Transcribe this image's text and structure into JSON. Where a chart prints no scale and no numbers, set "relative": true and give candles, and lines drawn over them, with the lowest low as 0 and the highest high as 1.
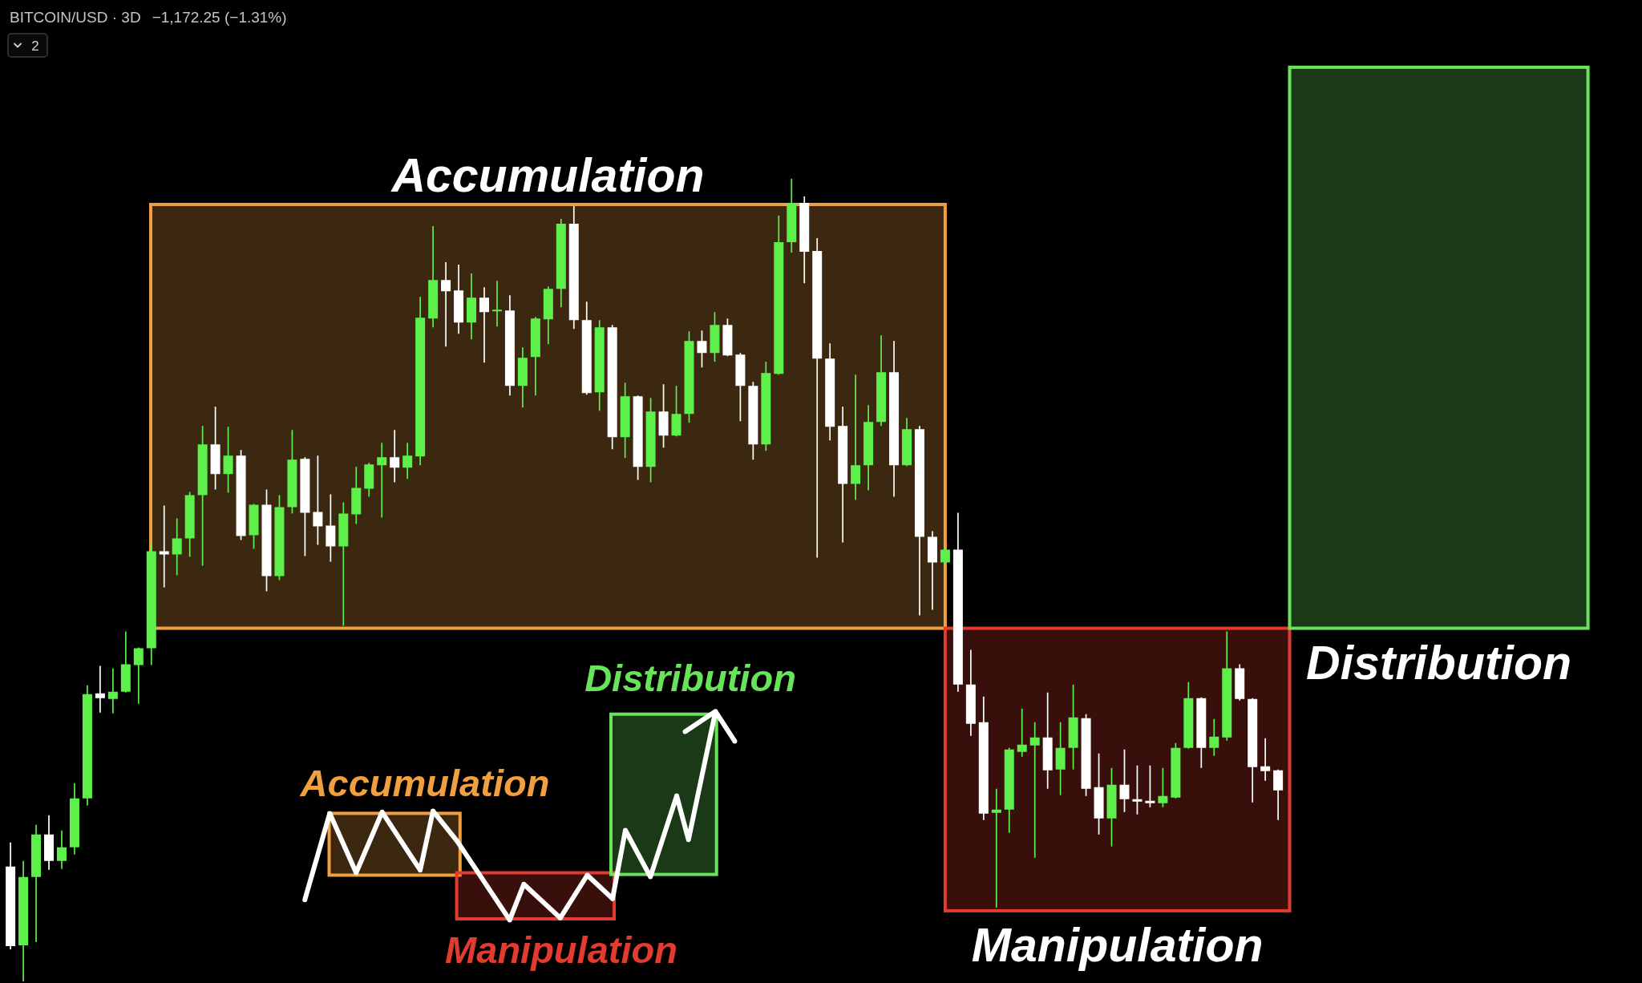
{
  "chart_data": {
    "type": "candlestick",
    "title": "BITCOIN/USD · 3D",
    "subtitle": "−1,172.25 (−1.31%)",
    "relative": true,
    "categories": [
      null,
      null,
      null,
      null,
      null,
      null,
      null,
      null,
      null,
      null,
      null,
      null,
      null,
      null,
      null,
      null,
      null,
      null,
      null,
      null,
      null,
      null,
      null,
      null,
      null,
      null,
      null,
      null,
      null,
      null,
      null,
      null,
      null,
      null,
      null,
      null,
      null,
      null,
      null,
      null,
      null,
      null,
      null,
      null,
      null,
      null,
      null,
      null,
      null,
      null,
      null,
      null,
      null,
      null,
      null,
      null,
      null,
      null,
      null,
      null,
      null,
      null,
      null,
      null,
      null,
      null,
      null,
      null,
      null,
      null,
      null,
      null,
      null,
      null,
      null,
      null,
      null,
      null,
      null,
      null,
      null,
      null,
      null,
      null,
      null,
      null,
      null,
      null,
      null,
      null,
      null,
      null,
      null,
      null,
      null,
      null,
      null,
      null,
      null,
      null,
      null,
      null,
      null,
      null,
      null,
      null,
      null,
      null,
      null,
      null,
      null,
      null,
      null,
      null,
      null,
      null,
      null,
      null,
      null,
      null,
      null,
      null,
      null,
      null
    ],
    "ohlc": [
      [
        0.143,
        0.173,
        0.04,
        0.044
      ],
      [
        0.045,
        0.15,
        0,
        0.13
      ],
      [
        0.13,
        0.195,
        0.049,
        0.183
      ],
      [
        0.183,
        0.207,
        0.139,
        0.15
      ],
      [
        0.15,
        0.188,
        0.14,
        0.167
      ],
      [
        0.167,
        0.247,
        0.158,
        0.228
      ],
      [
        0.228,
        0.369,
        0.219,
        0.358
      ],
      [
        0.359,
        0.393,
        0.335,
        0.353
      ],
      [
        0.352,
        0.39,
        0.334,
        0.361
      ],
      [
        0.361,
        0.436,
        0.36,
        0.395
      ],
      [
        0.394,
        0.416,
        0.346,
        0.415
      ],
      [
        0.415,
        0.545,
        0.394,
        0.536
      ],
      [
        0.536,
        0.593,
        0.491,
        0.532
      ],
      [
        0.532,
        0.577,
        0.506,
        0.552
      ],
      [
        0.552,
        0.61,
        0.529,
        0.606
      ],
      [
        0.606,
        0.692,
        0.518,
        0.669
      ],
      [
        0.669,
        0.716,
        0.613,
        0.632
      ],
      [
        0.632,
        0.691,
        0.609,
        0.655
      ],
      [
        0.655,
        0.662,
        0.55,
        0.555
      ],
      [
        0.556,
        0.595,
        0.539,
        0.594
      ],
      [
        0.594,
        0.613,
        0.486,
        0.505
      ],
      [
        0.505,
        0.606,
        0.5,
        0.591
      ],
      [
        0.591,
        0.687,
        0.583,
        0.65
      ],
      [
        0.651,
        0.653,
        0.53,
        0.584
      ],
      [
        0.585,
        0.655,
        0.544,
        0.567
      ],
      [
        0.568,
        0.607,
        0.523,
        0.542
      ],
      [
        0.542,
        0.597,
        0.443,
        0.583
      ],
      [
        0.582,
        0.641,
        0.57,
        0.615
      ],
      [
        0.614,
        0.646,
        0.604,
        0.644
      ],
      [
        0.643,
        0.671,
        0.578,
        0.653
      ],
      [
        0.653,
        0.687,
        0.622,
        0.64
      ],
      [
        0.64,
        0.671,
        0.626,
        0.655
      ],
      [
        0.654,
        0.853,
        0.643,
        0.827
      ],
      [
        0.826,
        0.941,
        0.815,
        0.874
      ],
      [
        0.874,
        0.896,
        0.791,
        0.86
      ],
      [
        0.861,
        0.893,
        0.807,
        0.821
      ],
      [
        0.821,
        0.882,
        0.8,
        0.852
      ],
      [
        0.852,
        0.865,
        0.771,
        0.834
      ],
      [
        0.835,
        0.873,
        0.816,
        0.837
      ],
      [
        0.836,
        0.855,
        0.73,
        0.742
      ],
      [
        0.742,
        0.79,
        0.715,
        0.777
      ],
      [
        0.778,
        0.828,
        0.73,
        0.826
      ],
      [
        0.825,
        0.866,
        0.794,
        0.863
      ],
      [
        0.863,
        0.95,
        0.84,
        0.944
      ],
      [
        0.944,
        0.966,
        0.813,
        0.824
      ],
      [
        0.824,
        0.847,
        0.731,
        0.733
      ],
      [
        0.734,
        0.824,
        0.711,
        0.815
      ],
      [
        0.815,
        0.818,
        0.663,
        0.678
      ],
      [
        0.678,
        0.746,
        0.652,
        0.729
      ],
      [
        0.729,
        0.73,
        0.625,
        0.641
      ],
      [
        0.641,
        0.727,
        0.622,
        0.71
      ],
      [
        0.71,
        0.744,
        0.665,
        0.68
      ],
      [
        0.68,
        0.742,
        0.679,
        0.707
      ],
      [
        0.707,
        0.81,
        0.696,
        0.798
      ],
      [
        0.798,
        0.811,
        0.765,
        0.783
      ],
      [
        0.783,
        0.834,
        0.772,
        0.818
      ],
      [
        0.818,
        0.826,
        0.779,
        0.78
      ],
      [
        0.781,
        0.783,
        0.698,
        0.742
      ],
      [
        0.742,
        0.747,
        0.65,
        0.669
      ],
      [
        0.669,
        0.772,
        0.661,
        0.758
      ],
      [
        0.757,
        0.954,
        0.756,
        0.921
      ],
      [
        0.921,
        1,
        0.908,
        0.97
      ],
      [
        0.97,
        0.978,
        0.87,
        0.909
      ],
      [
        0.91,
        0.926,
        0.528,
        0.776
      ],
      [
        0.776,
        0.795,
        0.674,
        0.691
      ],
      [
        0.692,
        0.716,
        0.547,
        0.62
      ],
      [
        0.62,
        0.756,
        0.6,
        0.643
      ],
      [
        0.643,
        0.718,
        0.612,
        0.697
      ],
      [
        0.697,
        0.805,
        0.692,
        0.759
      ],
      [
        0.759,
        0.798,
        0.604,
        0.643
      ],
      [
        0.643,
        0.702,
        0.642,
        0.688
      ],
      [
        0.688,
        0.692,
        0.456,
        0.554
      ],
      [
        0.554,
        0.561,
        0.463,
        0.522
      ],
      [
        0.522,
        0.541,
        0.519,
        0.538
      ],
      [
        0.538,
        0.584,
        0.361,
        0.37
      ],
      [
        0.37,
        0.413,
        0.306,
        0.321
      ],
      [
        0.323,
        0.355,
        0.201,
        0.209
      ],
      [
        0.21,
        0.24,
        0.092,
        0.214
      ],
      [
        0.214,
        0.291,
        0.185,
        0.289
      ],
      [
        0.286,
        0.34,
        0.28,
        0.295
      ],
      [
        0.294,
        0.323,
        0.154,
        0.304
      ],
      [
        0.304,
        0.36,
        0.24,
        0.263
      ],
      [
        0.264,
        0.323,
        0.232,
        0.291
      ],
      [
        0.291,
        0.37,
        0.264,
        0.329
      ],
      [
        0.328,
        0.333,
        0.231,
        0.24
      ],
      [
        0.242,
        0.284,
        0.183,
        0.203
      ],
      [
        0.203,
        0.266,
        0.168,
        0.245
      ],
      [
        0.245,
        0.289,
        0.211,
        0.227
      ],
      [
        0.227,
        0.269,
        0.208,
        0.224
      ],
      [
        0.225,
        0.269,
        0.217,
        0.222
      ],
      [
        0.222,
        0.266,
        0.217,
        0.231
      ],
      [
        0.229,
        0.297,
        0.228,
        0.291
      ],
      [
        0.291,
        0.373,
        0.29,
        0.353
      ],
      [
        0.353,
        0.354,
        0.266,
        0.291
      ],
      [
        0.291,
        0.327,
        0.281,
        0.305
      ],
      [
        0.304,
        0.436,
        0.3,
        0.39
      ],
      [
        0.39,
        0.395,
        0.35,
        0.352
      ],
      [
        0.352,
        0.353,
        0.223,
        0.267
      ],
      [
        0.268,
        0.303,
        0.25,
        0.262
      ],
      [
        0.263,
        0.264,
        0.201,
        0.238
      ],
      null,
      null,
      null,
      null,
      null,
      null,
      null,
      null,
      null,
      null,
      null,
      null,
      null,
      null,
      null,
      null,
      null,
      null,
      null,
      null,
      null,
      null,
      null,
      null
    ],
    "colors": [
      "#ffffff",
      "#5df04b",
      "#5df04b",
      "#ffffff",
      "#5df04b",
      "#5df04b",
      "#5df04b",
      "#ffffff",
      "#5df04b",
      "#5df04b",
      "#5df04b",
      "#5df04b",
      "#ffffff",
      "#5df04b",
      "#5df04b",
      "#5df04b",
      "#ffffff",
      "#5df04b",
      "#ffffff",
      "#5df04b",
      "#ffffff",
      "#5df04b",
      "#5df04b",
      "#ffffff",
      "#ffffff",
      "#ffffff",
      "#5df04b",
      "#5df04b",
      "#5df04b",
      "#5df04b",
      "#ffffff",
      "#5df04b",
      "#5df04b",
      "#5df04b",
      "#ffffff",
      "#ffffff",
      "#5df04b",
      "#ffffff",
      "#5df04b",
      "#ffffff",
      "#5df04b",
      "#5df04b",
      "#5df04b",
      "#5df04b",
      "#ffffff",
      "#ffffff",
      "#5df04b",
      "#ffffff",
      "#5df04b",
      "#ffffff",
      "#5df04b",
      "#ffffff",
      "#5df04b",
      "#5df04b",
      "#ffffff",
      "#5df04b",
      "#ffffff",
      "#ffffff",
      "#ffffff",
      "#5df04b",
      "#5df04b",
      "#5df04b",
      "#ffffff",
      "#ffffff",
      "#ffffff",
      "#ffffff",
      "#5df04b",
      "#5df04b",
      "#5df04b",
      "#ffffff",
      "#5df04b",
      "#ffffff",
      "#ffffff",
      "#5df04b",
      "#ffffff",
      "#ffffff",
      "#ffffff",
      "#5df04b",
      "#5df04b",
      "#5df04b",
      "#5df04b",
      "#ffffff",
      "#5df04b",
      "#5df04b",
      "#ffffff",
      "#ffffff",
      "#5df04b",
      "#ffffff",
      "#ffffff",
      "#ffffff",
      "#5df04b",
      "#5df04b",
      "#5df04b",
      "#ffffff",
      "#5df04b",
      "#5df04b",
      "#ffffff",
      "#ffffff",
      "#ffffff",
      "#ffffff",
      null,
      null,
      null,
      null,
      null,
      null,
      null,
      null,
      null,
      null,
      null,
      null,
      null,
      null,
      null,
      null,
      null,
      null,
      null,
      null,
      null,
      null,
      null,
      null
    ],
    "bands": [
      {
        "axis": "y",
        "from": 0.44,
        "to": 0.968,
        "label": "Accumulation",
        "color": "#f0a040"
      },
      {
        "axis": "y",
        "from": 0.088,
        "to": 0.44,
        "label": "Manipulation",
        "color": "#e23b2f"
      },
      {
        "axis": "y",
        "from": 0.44,
        "to": 1.139,
        "label": "Distribution",
        "color": "#68e45a"
      }
    ],
    "annotations": [
      "Accumulation",
      "Manipulation",
      "Distribution",
      "2"
    ]
  }
}
